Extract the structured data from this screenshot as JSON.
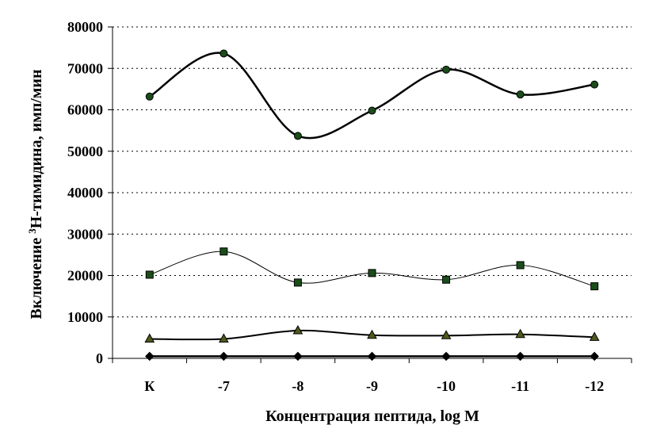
{
  "chart_data": {
    "type": "line",
    "xlabel": "Концентрация пептида, log M",
    "ylabel": {
      "prefix": "Включение ",
      "sup": "3",
      "suffix": "Н-тимидина, имп/мин"
    },
    "categories": [
      "К",
      "-7",
      "-8",
      "-9",
      "-10",
      "-11",
      "-12"
    ],
    "ylim": [
      0,
      80000
    ],
    "yticks": [
      "0",
      "10000",
      "20000",
      "30000",
      "40000",
      "50000",
      "60000",
      "70000",
      "80000"
    ],
    "grid": "horizontal-dotted",
    "legend": "none",
    "series": [
      {
        "marker": "circle",
        "color": "#1a4d1a",
        "line_width": 2.5,
        "values": [
          63200,
          73600,
          53700,
          59800,
          69700,
          63700,
          66100
        ]
      },
      {
        "marker": "square",
        "color": "#1a4d1a",
        "line_width": 1,
        "values": [
          20200,
          25800,
          18300,
          20600,
          19000,
          22500,
          17400
        ]
      },
      {
        "marker": "triangle",
        "color": "#4d5a1a",
        "line_width": 2,
        "values": [
          4700,
          4700,
          6700,
          5600,
          5500,
          5800,
          5100
        ]
      },
      {
        "marker": "diamond",
        "color": "#000000",
        "line_width": 2.5,
        "values": [
          500,
          500,
          500,
          500,
          500,
          500,
          500
        ]
      }
    ]
  }
}
